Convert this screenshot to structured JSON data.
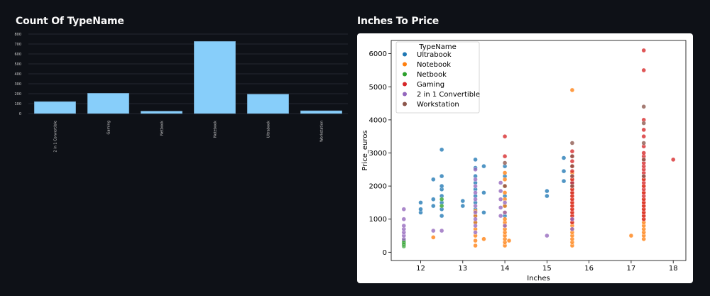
{
  "page": {
    "left_title": "Count Of TypeName",
    "right_title": "Inches To Price"
  },
  "chart_data": [
    {
      "type": "bar",
      "title": "Count Of TypeName",
      "categories": [
        "2 in 1 Convertible",
        "Gaming",
        "Netbook",
        "Notebook",
        "Ultrabook",
        "Workstation"
      ],
      "values": [
        121,
        205,
        25,
        727,
        196,
        29
      ],
      "ylim": [
        0,
        800
      ],
      "yticks": [
        0,
        100,
        200,
        300,
        400,
        500,
        600,
        700,
        800
      ],
      "grid": true,
      "bar_color": "#87cefa"
    },
    {
      "type": "scatter",
      "title": "Inches To Price",
      "xlabel": "Inches",
      "ylabel": "Price_euros",
      "xlim": [
        11.3,
        18.3
      ],
      "ylim": [
        -250,
        6400
      ],
      "xticks": [
        12,
        13,
        14,
        15,
        16,
        17,
        18
      ],
      "yticks": [
        0,
        1000,
        2000,
        3000,
        4000,
        5000,
        6000
      ],
      "legend": {
        "title": "TypeName",
        "placement": "top-left"
      },
      "series": [
        {
          "name": "Ultrabook",
          "color": "#1f77b4",
          "points": [
            [
              12,
              1200
            ],
            [
              12,
              1300
            ],
            [
              12,
              1500
            ],
            [
              12.3,
              1600
            ],
            [
              12.3,
              1400
            ],
            [
              12.3,
              2200
            ],
            [
              12.5,
              1100
            ],
            [
              12.5,
              1300
            ],
            [
              12.5,
              1500
            ],
            [
              12.5,
              1700
            ],
            [
              12.5,
              1900
            ],
            [
              12.5,
              2000
            ],
            [
              12.5,
              2300
            ],
            [
              12.5,
              3100
            ],
            [
              13,
              1400
            ],
            [
              13,
              1550
            ],
            [
              13.3,
              900
            ],
            [
              13.3,
              1100
            ],
            [
              13.3,
              1300
            ],
            [
              13.3,
              1500
            ],
            [
              13.3,
              1700
            ],
            [
              13.3,
              1900
            ],
            [
              13.3,
              2100
            ],
            [
              13.3,
              2300
            ],
            [
              13.3,
              2550
            ],
            [
              13.3,
              2800
            ],
            [
              13.5,
              1200
            ],
            [
              13.5,
              1800
            ],
            [
              13.5,
              2600
            ],
            [
              14,
              1100
            ],
            [
              14,
              1400
            ],
            [
              14,
              1700
            ],
            [
              14,
              2000
            ],
            [
              14,
              2300
            ],
            [
              14,
              2600
            ],
            [
              15,
              1700
            ],
            [
              15,
              1850
            ],
            [
              15.4,
              2150
            ],
            [
              15.4,
              2450
            ],
            [
              15.4,
              2850
            ],
            [
              15.6,
              1800
            ],
            [
              15.6,
              2100
            ]
          ]
        },
        {
          "name": "Notebook",
          "color": "#ff7f0e",
          "points": [
            [
              12.3,
              450
            ],
            [
              13.3,
              200
            ],
            [
              13.3,
              350
            ],
            [
              13.3,
              500
            ],
            [
              13.3,
              700
            ],
            [
              13.3,
              900
            ],
            [
              13.3,
              1100
            ],
            [
              13.3,
              1250
            ],
            [
              13.5,
              400
            ],
            [
              14,
              200
            ],
            [
              14,
              300
            ],
            [
              14,
              400
            ],
            [
              14,
              500
            ],
            [
              14,
              600
            ],
            [
              14,
              700
            ],
            [
              14,
              800
            ],
            [
              14,
              900
            ],
            [
              14,
              1000
            ],
            [
              14,
              1200
            ],
            [
              14,
              1400
            ],
            [
              14,
              1600
            ],
            [
              14,
              1800
            ],
            [
              14,
              2000
            ],
            [
              14,
              2200
            ],
            [
              14,
              2400
            ],
            [
              14.1,
              350
            ],
            [
              15.6,
              200
            ],
            [
              15.6,
              300
            ],
            [
              15.6,
              400
            ],
            [
              15.6,
              500
            ],
            [
              15.6,
              600
            ],
            [
              15.6,
              700
            ],
            [
              15.6,
              800
            ],
            [
              15.6,
              900
            ],
            [
              15.6,
              1000
            ],
            [
              15.6,
              1100
            ],
            [
              15.6,
              1200
            ],
            [
              15.6,
              1300
            ],
            [
              15.6,
              1400
            ],
            [
              15.6,
              1500
            ],
            [
              15.6,
              1600
            ],
            [
              15.6,
              1700
            ],
            [
              15.6,
              1800
            ],
            [
              15.6,
              1900
            ],
            [
              15.6,
              2000
            ],
            [
              15.6,
              2200
            ],
            [
              15.6,
              2400
            ],
            [
              15.6,
              2600
            ],
            [
              15.6,
              4900
            ],
            [
              17,
              500
            ],
            [
              17.3,
              400
            ],
            [
              17.3,
              500
            ],
            [
              17.3,
              600
            ],
            [
              17.3,
              700
            ],
            [
              17.3,
              800
            ],
            [
              17.3,
              900
            ],
            [
              17.3,
              1000
            ],
            [
              17.3,
              1100
            ],
            [
              17.3,
              1200
            ],
            [
              17.3,
              1300
            ],
            [
              17.3,
              1400
            ],
            [
              17.3,
              1500
            ],
            [
              17.3,
              1600
            ],
            [
              17.3,
              1800
            ],
            [
              17.3,
              2000
            ],
            [
              17.3,
              2200
            ]
          ]
        },
        {
          "name": "Netbook",
          "color": "#2ca02c",
          "points": [
            [
              11.6,
              180
            ],
            [
              11.6,
              220
            ],
            [
              11.6,
              260
            ],
            [
              11.6,
              300
            ],
            [
              11.6,
              350
            ],
            [
              12.5,
              1400
            ],
            [
              12.5,
              1600
            ]
          ]
        },
        {
          "name": "Gaming",
          "color": "#d62728",
          "points": [
            [
              14,
              2900
            ],
            [
              14,
              3500
            ],
            [
              15.6,
              900
            ],
            [
              15.6,
              1000
            ],
            [
              15.6,
              1100
            ],
            [
              15.6,
              1200
            ],
            [
              15.6,
              1300
            ],
            [
              15.6,
              1400
            ],
            [
              15.6,
              1500
            ],
            [
              15.6,
              1600
            ],
            [
              15.6,
              1700
            ],
            [
              15.6,
              1800
            ],
            [
              15.6,
              1900
            ],
            [
              15.6,
              2000
            ],
            [
              15.6,
              2100
            ],
            [
              15.6,
              2200
            ],
            [
              15.6,
              2300
            ],
            [
              15.6,
              2450
            ],
            [
              15.6,
              2600
            ],
            [
              15.6,
              2750
            ],
            [
              15.6,
              2900
            ],
            [
              15.6,
              3050
            ],
            [
              17.3,
              1000
            ],
            [
              17.3,
              1100
            ],
            [
              17.3,
              1200
            ],
            [
              17.3,
              1300
            ],
            [
              17.3,
              1400
            ],
            [
              17.3,
              1500
            ],
            [
              17.3,
              1600
            ],
            [
              17.3,
              1700
            ],
            [
              17.3,
              1800
            ],
            [
              17.3,
              1900
            ],
            [
              17.3,
              2000
            ],
            [
              17.3,
              2100
            ],
            [
              17.3,
              2200
            ],
            [
              17.3,
              2300
            ],
            [
              17.3,
              2400
            ],
            [
              17.3,
              2500
            ],
            [
              17.3,
              2600
            ],
            [
              17.3,
              2700
            ],
            [
              17.3,
              2800
            ],
            [
              17.3,
              2900
            ],
            [
              17.3,
              3000
            ],
            [
              17.3,
              3200
            ],
            [
              17.3,
              3500
            ],
            [
              17.3,
              3700
            ],
            [
              17.3,
              4000
            ],
            [
              17.3,
              5500
            ],
            [
              17.3,
              6100
            ],
            [
              18,
              2800
            ]
          ]
        },
        {
          "name": "2 in 1 Convertible",
          "color": "#9467bd",
          "points": [
            [
              11.6,
              400
            ],
            [
              11.6,
              500
            ],
            [
              11.6,
              600
            ],
            [
              11.6,
              700
            ],
            [
              11.6,
              800
            ],
            [
              11.6,
              1000
            ],
            [
              11.6,
              1300
            ],
            [
              12.3,
              650
            ],
            [
              12.5,
              650
            ],
            [
              13.3,
              600
            ],
            [
              13.3,
              800
            ],
            [
              13.3,
              1000
            ],
            [
              13.3,
              1200
            ],
            [
              13.3,
              1400
            ],
            [
              13.3,
              1600
            ],
            [
              13.3,
              1800
            ],
            [
              13.3,
              2000
            ],
            [
              13.3,
              2200
            ],
            [
              13.3,
              2500
            ],
            [
              13.9,
              1100
            ],
            [
              13.9,
              1350
            ],
            [
              13.9,
              1600
            ],
            [
              13.9,
              1850
            ],
            [
              13.9,
              2100
            ],
            [
              14,
              800
            ],
            [
              14,
              1200
            ],
            [
              14,
              1500
            ],
            [
              15,
              500
            ],
            [
              15.6,
              700
            ],
            [
              15.6,
              1000
            ]
          ]
        },
        {
          "name": "Workstation",
          "color": "#8c564b",
          "points": [
            [
              14,
              2000
            ],
            [
              14,
              2700
            ],
            [
              15.6,
              2000
            ],
            [
              15.6,
              2300
            ],
            [
              15.6,
              2600
            ],
            [
              15.6,
              2900
            ],
            [
              15.6,
              3300
            ],
            [
              17.3,
              2300
            ],
            [
              17.3,
              2800
            ],
            [
              17.3,
              3300
            ],
            [
              17.3,
              3900
            ],
            [
              17.3,
              4400
            ]
          ]
        }
      ]
    }
  ]
}
